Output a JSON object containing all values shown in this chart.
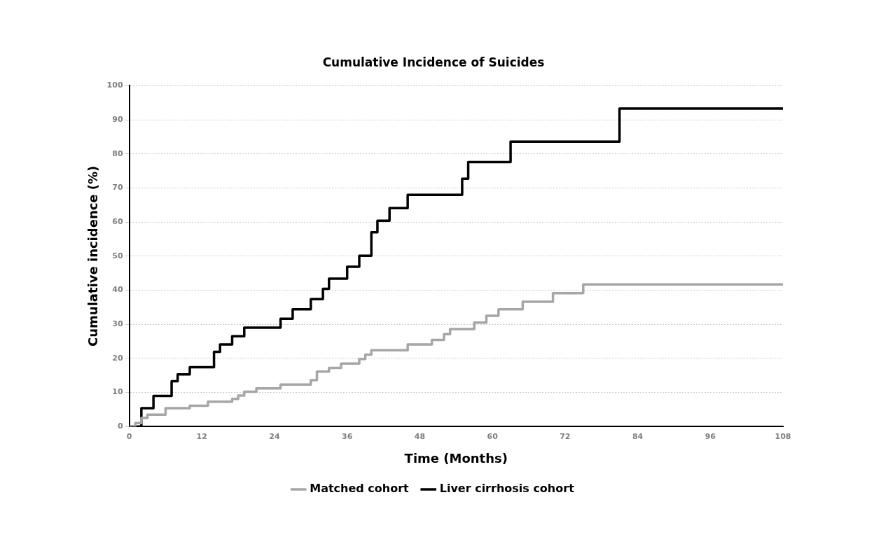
{
  "chart_data": {
    "type": "step",
    "title": "Cumulative Incidence of Suicides",
    "xlabel": "Time (Months)",
    "ylabel": "Cumulative incidence (%)",
    "xlim": [
      0,
      108
    ],
    "xticks": [
      0,
      12,
      24,
      36,
      48,
      60,
      72,
      84,
      96,
      108
    ],
    "ylim": [
      0,
      100
    ],
    "yticks": [
      0,
      10,
      20,
      30,
      40,
      50,
      60,
      70,
      80,
      90,
      100
    ],
    "grid": "y",
    "legend": "bottom",
    "marker": "none",
    "line_style": "solid",
    "series": [
      {
        "name": "Matched cohort",
        "color": "#a6a6a6",
        "x": [
          0,
          1,
          2,
          3,
          6,
          10,
          13,
          17,
          18,
          19,
          21,
          25,
          30,
          31,
          33,
          35,
          38,
          39,
          40,
          46,
          50,
          52,
          53,
          57,
          59,
          61,
          65,
          70,
          75,
          108
        ],
        "values": [
          0,
          1,
          2.5,
          3.5,
          5.4,
          6.1,
          7.3,
          8.1,
          9.1,
          10.2,
          11.2,
          12.3,
          13.6,
          16.1,
          17.2,
          18.5,
          19.8,
          21.1,
          22.4,
          24.1,
          25.4,
          27.1,
          28.6,
          30.5,
          32.5,
          34.4,
          36.6,
          39.1,
          41.7,
          41.7
        ]
      },
      {
        "name": "Liver cirrhosis cohort",
        "color": "#000000",
        "x": [
          0,
          2,
          4,
          7,
          8,
          10,
          14,
          15,
          17,
          19,
          25,
          27,
          30,
          32,
          33,
          36,
          38,
          40,
          41,
          43,
          46,
          55,
          56,
          63,
          81,
          108
        ],
        "values": [
          0,
          5.4,
          9,
          13.3,
          15.3,
          17.4,
          21.9,
          24.1,
          26.5,
          29,
          31.6,
          34.4,
          37.4,
          40.4,
          43.4,
          46.9,
          50.1,
          57,
          60.4,
          64.1,
          68,
          72.7,
          77.6,
          83.6,
          93.3,
          93.3
        ]
      }
    ]
  }
}
